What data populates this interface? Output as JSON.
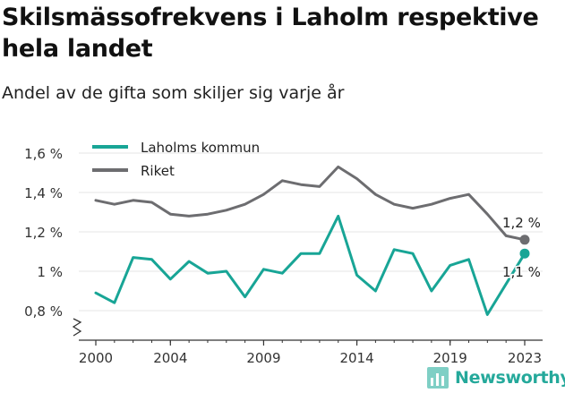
{
  "header": {
    "title": "Skilsmässofrekvens i Laholm respektive hela landet",
    "subtitle": "Andel av de gifta som skiljer sig varje år"
  },
  "brand": {
    "name": "Newsworthy",
    "color": "#25a99b"
  },
  "chart_data": {
    "type": "line",
    "x": [
      2000,
      2001,
      2002,
      2003,
      2004,
      2005,
      2006,
      2007,
      2008,
      2009,
      2010,
      2011,
      2012,
      2013,
      2014,
      2015,
      2016,
      2017,
      2018,
      2019,
      2020,
      2021,
      2022,
      2023
    ],
    "series": [
      {
        "name": "Laholms kommun",
        "color": "#18a596",
        "values": [
          0.89,
          0.84,
          1.07,
          1.06,
          0.96,
          1.05,
          0.99,
          1.0,
          0.87,
          1.01,
          0.99,
          1.09,
          1.09,
          1.28,
          0.98,
          0.9,
          1.11,
          1.09,
          0.9,
          1.03,
          1.06,
          0.78,
          null,
          1.09
        ],
        "end_label": "1,1 %"
      },
      {
        "name": "Riket",
        "color": "#6d6d70",
        "values": [
          1.36,
          1.34,
          1.36,
          1.35,
          1.29,
          1.28,
          1.29,
          1.31,
          1.34,
          1.39,
          1.46,
          1.44,
          1.43,
          1.53,
          1.47,
          1.39,
          1.34,
          1.32,
          1.34,
          1.37,
          1.39,
          1.29,
          1.18,
          1.16
        ],
        "end_label": "1,2 %"
      }
    ],
    "y_ticks": [
      {
        "value": 0.8,
        "label": "0,8 %"
      },
      {
        "value": 1.0,
        "label": "1 %"
      },
      {
        "value": 1.2,
        "label": "1,2 %"
      },
      {
        "value": 1.4,
        "label": "1,4 %"
      },
      {
        "value": 1.6,
        "label": "1,6 %"
      }
    ],
    "x_ticks": [
      {
        "value": 2000,
        "label": "2000"
      },
      {
        "value": 2004,
        "label": "2004"
      },
      {
        "value": 2009,
        "label": "2009"
      },
      {
        "value": 2014,
        "label": "2014"
      },
      {
        "value": 2019,
        "label": "2019"
      },
      {
        "value": 2023,
        "label": "2023"
      }
    ],
    "xlim": [
      2000,
      2023
    ],
    "ylim": [
      0.8,
      1.6
    ],
    "grid": true,
    "axis_break": true,
    "legend_position": "top-left"
  }
}
